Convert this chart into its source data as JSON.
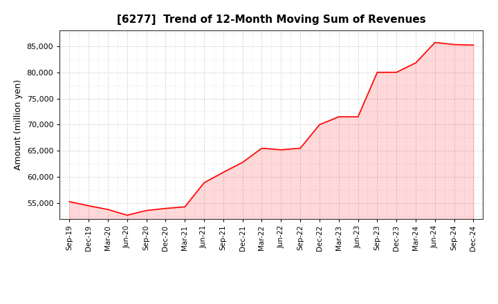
{
  "title": "[6277]  Trend of 12-Month Moving Sum of Revenues",
  "ylabel": "Amount (million yen)",
  "line_color": "#ff0000",
  "background_color": "#ffffff",
  "plot_bg_color": "#ffffff",
  "grid_color": "#aaaaaa",
  "ylim": [
    52000,
    88000
  ],
  "yticks": [
    55000,
    60000,
    65000,
    70000,
    75000,
    80000,
    85000
  ],
  "x_labels": [
    "Sep-19",
    "Dec-19",
    "Mar-20",
    "Jun-20",
    "Sep-20",
    "Dec-20",
    "Mar-21",
    "Jun-21",
    "Sep-21",
    "Dec-21",
    "Mar-22",
    "Jun-22",
    "Sep-22",
    "Dec-22",
    "Mar-23",
    "Jun-23",
    "Sep-23",
    "Dec-23",
    "Mar-24",
    "Jun-24",
    "Sep-24",
    "Dec-24"
  ],
  "values": [
    55300,
    54500,
    53800,
    52700,
    53600,
    54000,
    54300,
    58900,
    60900,
    62800,
    65500,
    65200,
    65500,
    70000,
    71500,
    71500,
    80000,
    80000,
    81800,
    85700,
    85300,
    85200
  ]
}
